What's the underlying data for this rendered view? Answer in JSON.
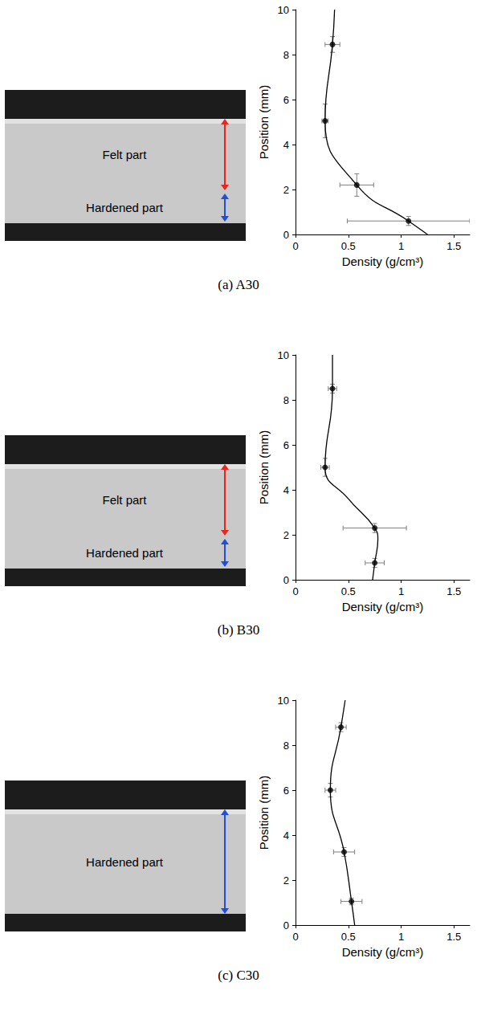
{
  "chart_data": [
    {
      "type": "scatter",
      "title": "(a) A30",
      "xlabel": "Density (g/cm³)",
      "ylabel": "Position (mm)",
      "xlim": [
        0,
        1.65
      ],
      "xticks": [
        0,
        0.5,
        1,
        1.5
      ],
      "ylim": [
        0,
        10
      ],
      "yticks": [
        0,
        2,
        4,
        6,
        8,
        10
      ],
      "grid": false,
      "annotations": [
        {
          "text": "Felt part",
          "color": "#e8261c"
        },
        {
          "text": "Hardened part",
          "color": "#1f4fd8"
        }
      ],
      "series": [
        {
          "type": "scatter",
          "color": "#000000",
          "marker": "circle",
          "x": [
            1.07,
            0.58,
            0.28,
            0.35
          ],
          "y": [
            0.6,
            2.2,
            5.05,
            8.45
          ],
          "xerr": [
            0.58,
            0.16,
            0.03,
            0.07
          ],
          "yerr": [
            0.2,
            0.5,
            0.75,
            0.35
          ]
        },
        {
          "type": "line",
          "color": "#000000",
          "line_style": "solid",
          "x": [
            1.25,
            1.07,
            0.58,
            0.28,
            0.35,
            0.37
          ],
          "y": [
            0,
            0.6,
            2.2,
            5.05,
            8.45,
            10
          ]
        }
      ]
    },
    {
      "type": "scatter",
      "title": "(b) B30",
      "xlabel": "Density (g/cm³)",
      "ylabel": "Position (mm)",
      "xlim": [
        0,
        1.65
      ],
      "xticks": [
        0,
        0.5,
        1,
        1.5
      ],
      "ylim": [
        0,
        10
      ],
      "yticks": [
        0,
        2,
        4,
        6,
        8,
        10
      ],
      "grid": false,
      "annotations": [
        {
          "text": "Felt part",
          "color": "#e8261c"
        },
        {
          "text": "Hardened part",
          "color": "#1f4fd8"
        }
      ],
      "series": [
        {
          "type": "scatter",
          "color": "#000000",
          "marker": "circle",
          "x": [
            0.75,
            0.75,
            0.28,
            0.35
          ],
          "y": [
            0.75,
            2.3,
            5.0,
            8.5
          ],
          "xerr": [
            0.09,
            0.3,
            0.04,
            0.04
          ],
          "yerr": [
            0.2,
            0.2,
            0.4,
            0.2
          ]
        },
        {
          "type": "line",
          "color": "#000000",
          "line_style": "solid",
          "x": [
            0.73,
            0.75,
            0.78,
            0.75,
            0.5,
            0.28,
            0.35,
            0.35
          ],
          "y": [
            0,
            0.75,
            1.8,
            2.3,
            3.6,
            5.0,
            8.5,
            10
          ]
        }
      ]
    },
    {
      "type": "scatter",
      "title": "(c) C30",
      "xlabel": "Density (g/cm³)",
      "ylabel": "Position (mm)",
      "xlim": [
        0,
        1.65
      ],
      "xticks": [
        0,
        0.5,
        1,
        1.5
      ],
      "ylim": [
        0,
        10
      ],
      "yticks": [
        0,
        2,
        4,
        6,
        8,
        10
      ],
      "grid": false,
      "annotations": [
        {
          "text": "Hardened part",
          "color": "#1f4fd8"
        }
      ],
      "series": [
        {
          "type": "scatter",
          "color": "#000000",
          "marker": "circle",
          "x": [
            0.53,
            0.46,
            0.33,
            0.43
          ],
          "y": [
            1.05,
            3.25,
            6.0,
            8.8
          ],
          "xerr": [
            0.1,
            0.1,
            0.05,
            0.05
          ],
          "yerr": [
            0.15,
            0.2,
            0.3,
            0.2
          ]
        },
        {
          "type": "line",
          "color": "#000000",
          "line_style": "solid",
          "x": [
            0.56,
            0.53,
            0.46,
            0.33,
            0.43,
            0.47
          ],
          "y": [
            0,
            1.05,
            3.25,
            6.0,
            8.8,
            10
          ]
        }
      ]
    }
  ]
}
